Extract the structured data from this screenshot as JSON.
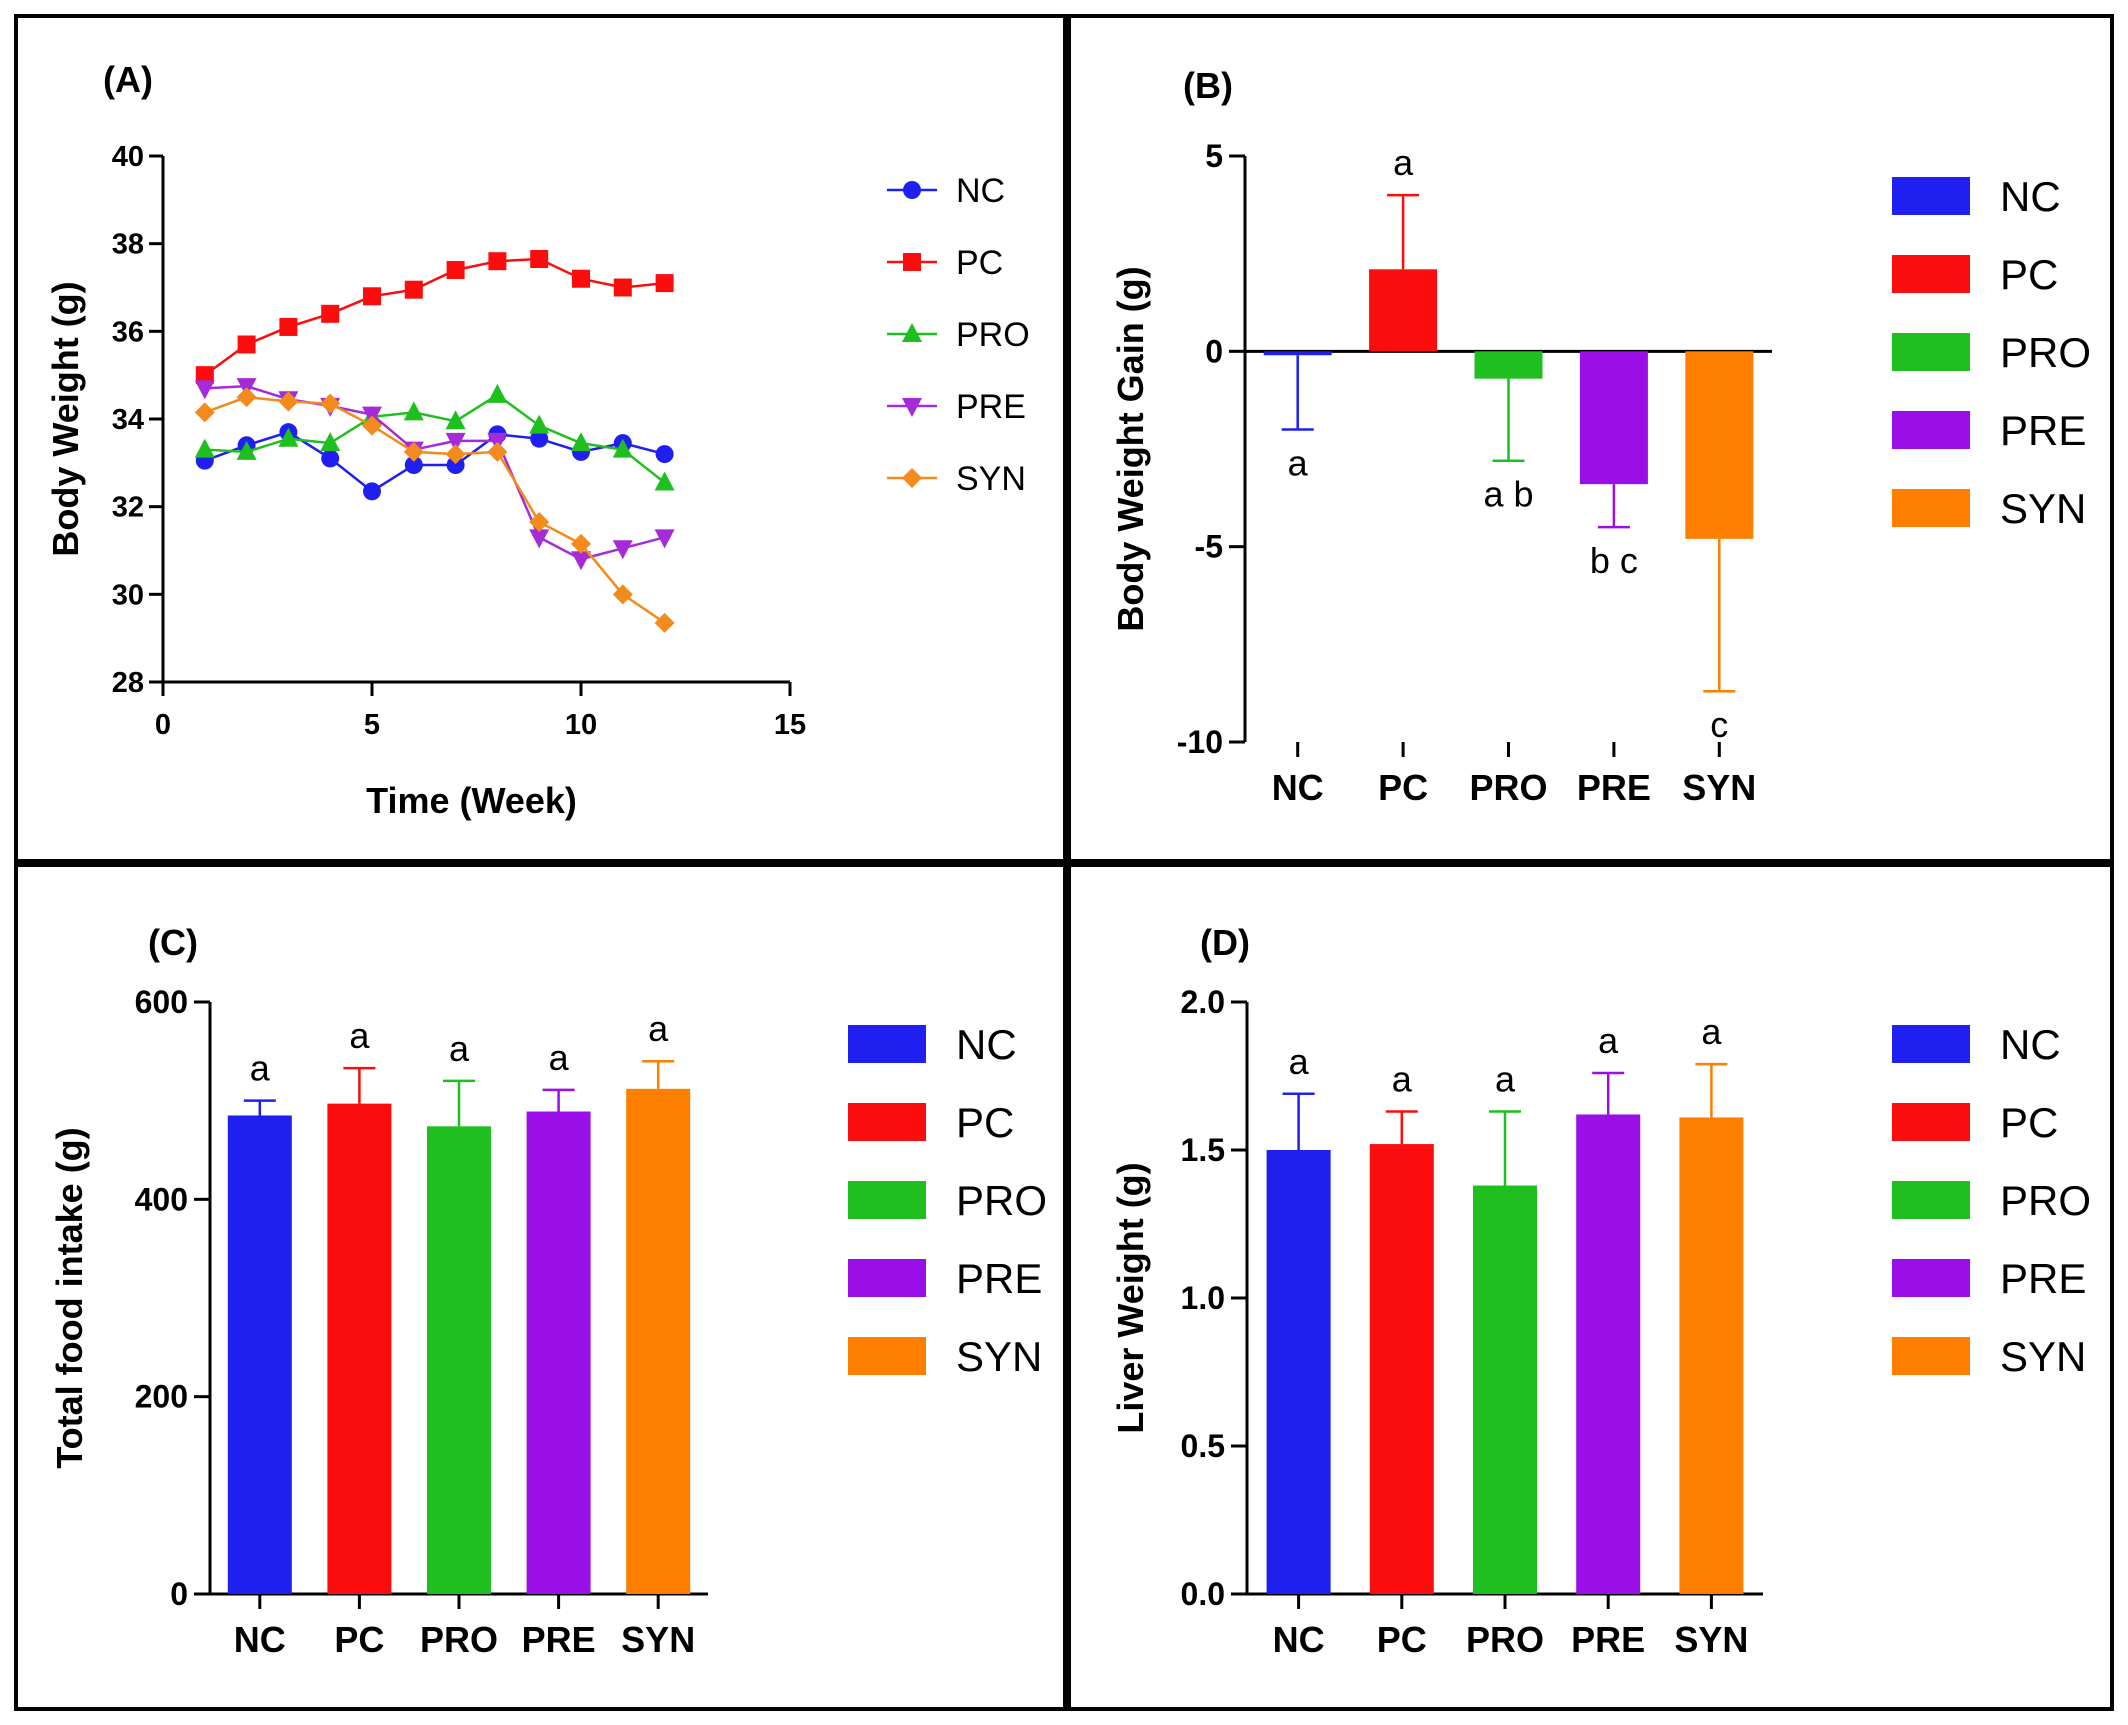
{
  "colors": {
    "NC": "#1f20f0",
    "PC": "#fb0d0d",
    "PRO": "#1fbf1f",
    "PRE": "#9a0fe8",
    "SYN": "#fe7f00",
    "line_PRE": "#a52bd9",
    "line_SYN": "#f38a1e"
  },
  "chart_data": [
    {
      "panel": "(A)",
      "type": "line",
      "xlabel": "Time (Week)",
      "ylabel": "Body Weight (g)",
      "xlim": [
        0,
        15
      ],
      "ylim": [
        28,
        40
      ],
      "xticks": [
        0,
        5,
        10,
        15
      ],
      "yticks": [
        28,
        30,
        32,
        34,
        36,
        38,
        40
      ],
      "x": [
        1,
        2,
        3,
        4,
        5,
        6,
        7,
        8,
        9,
        10,
        11,
        12
      ],
      "legend_position": "right",
      "series": [
        {
          "name": "NC",
          "marker": "circle",
          "values": [
            33.05,
            33.4,
            33.7,
            33.1,
            32.35,
            32.95,
            32.95,
            33.65,
            33.55,
            33.25,
            33.45,
            33.2
          ]
        },
        {
          "name": "PC",
          "marker": "square",
          "values": [
            35.0,
            35.7,
            36.1,
            36.4,
            36.8,
            36.95,
            37.4,
            37.6,
            37.65,
            37.2,
            37.0,
            37.1
          ]
        },
        {
          "name": "PRO",
          "marker": "triangle-up",
          "values": [
            33.3,
            33.25,
            33.55,
            33.45,
            34.05,
            34.15,
            33.95,
            34.55,
            33.85,
            33.45,
            33.3,
            32.55
          ]
        },
        {
          "name": "PRE",
          "marker": "triangle-down",
          "values": [
            34.7,
            34.75,
            34.45,
            34.3,
            34.1,
            33.3,
            33.5,
            33.5,
            31.3,
            30.8,
            31.05,
            31.3
          ]
        },
        {
          "name": "SYN",
          "marker": "diamond",
          "values": [
            34.15,
            34.5,
            34.4,
            34.35,
            33.85,
            33.25,
            33.2,
            33.25,
            31.65,
            31.15,
            30.0,
            29.35
          ]
        }
      ]
    },
    {
      "panel": "(B)",
      "type": "bar",
      "ylabel": "Body Weight Gain (g)",
      "ylim": [
        -10,
        5
      ],
      "yticks": [
        -10,
        -5,
        0,
        5
      ],
      "categories": [
        "NC",
        "PC",
        "PRO",
        "PRE",
        "SYN"
      ],
      "values": [
        -0.1,
        2.1,
        -0.7,
        -3.4,
        -4.8
      ],
      "error": [
        1.9,
        1.9,
        2.1,
        1.1,
        3.9
      ],
      "significance": [
        "a",
        "a",
        "a b",
        "b c",
        "c"
      ],
      "legend_position": "right"
    },
    {
      "panel": "(C)",
      "type": "bar",
      "ylabel": "Total food intake (g)",
      "ylim": [
        0,
        600
      ],
      "yticks": [
        0,
        200,
        400,
        600
      ],
      "categories": [
        "NC",
        "PC",
        "PRO",
        "PRE",
        "SYN"
      ],
      "values": [
        485,
        497,
        474,
        489,
        512
      ],
      "error": [
        15,
        36,
        46,
        22,
        28
      ],
      "significance": [
        "a",
        "a",
        "a",
        "a",
        "a"
      ],
      "legend_position": "right"
    },
    {
      "panel": "(D)",
      "type": "bar",
      "ylabel": "Liver Weight (g)",
      "ylim": [
        0,
        2
      ],
      "yticks": [
        "0.0",
        "0.5",
        "1.0",
        "1.5",
        "2.0"
      ],
      "categories": [
        "NC",
        "PC",
        "PRO",
        "PRE",
        "SYN"
      ],
      "values": [
        1.5,
        1.52,
        1.38,
        1.62,
        1.61
      ],
      "error": [
        0.19,
        0.11,
        0.25,
        0.14,
        0.18
      ],
      "significance": [
        "a",
        "a",
        "a",
        "a",
        "a"
      ],
      "legend_position": "right"
    }
  ]
}
